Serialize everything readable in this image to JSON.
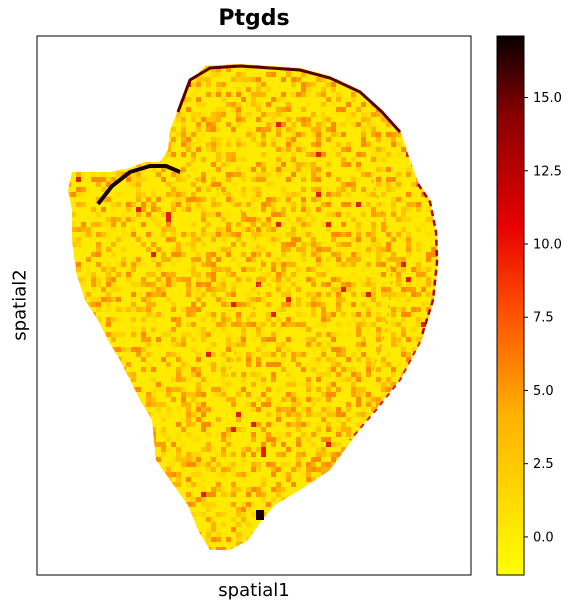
{
  "chart_data": {
    "type": "heatmap",
    "title": "Ptgds",
    "xlabel": "spatial1",
    "ylabel": "spatial2",
    "colorbar": {
      "colormap": "hot_r",
      "vmin": -1.3,
      "vmax": 17.1,
      "ticks": [
        {
          "value": 0.0,
          "label": "0.0"
        },
        {
          "value": 2.5,
          "label": "2.5"
        },
        {
          "value": 5.0,
          "label": "5.0"
        },
        {
          "value": 7.5,
          "label": "7.5"
        },
        {
          "value": 10.0,
          "label": "10.0"
        },
        {
          "value": 12.5,
          "label": "12.5"
        },
        {
          "value": 15.0,
          "label": "15.0"
        }
      ]
    },
    "x_ticks": [],
    "y_ticks": [],
    "grid": false
  }
}
